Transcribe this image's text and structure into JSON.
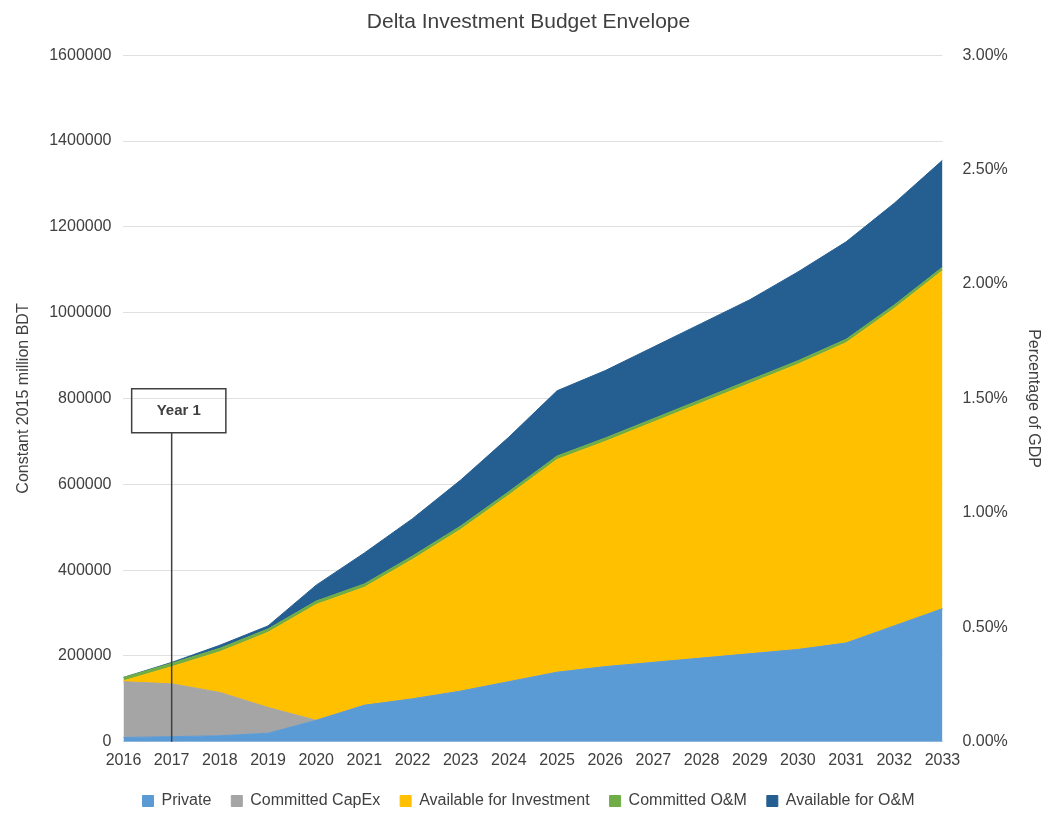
{
  "chart_data": {
    "type": "area",
    "title": "Delta Investment Budget Envelope",
    "ylabel": "Constant 2015 million BDT",
    "y2label": "Percentage of GDP",
    "categories": [
      "2016",
      "2017",
      "2018",
      "2019",
      "2020",
      "2021",
      "2022",
      "2023",
      "2024",
      "2025",
      "2026",
      "2027",
      "2028",
      "2029",
      "2030",
      "2031",
      "2032",
      "2033"
    ],
    "stacked": true,
    "series": [
      {
        "name": "Private",
        "color": "#5b9bd5",
        "values": [
          10000,
          12000,
          14000,
          20000,
          50000,
          85000,
          100000,
          118000,
          140000,
          162000,
          175000,
          185000,
          195000,
          205000,
          215000,
          230000,
          270000,
          310000
        ]
      },
      {
        "name": "Committed CapEx",
        "color": "#a5a5a5",
        "values": [
          130000,
          123000,
          101000,
          60000,
          0,
          0,
          0,
          0,
          0,
          0,
          0,
          0,
          0,
          0,
          0,
          0,
          0,
          0
        ]
      },
      {
        "name": "Available for Investment",
        "color": "#ffc000",
        "values": [
          2000,
          40000,
          95000,
          175000,
          270000,
          275000,
          325000,
          377000,
          435000,
          496000,
          525000,
          560000,
          595000,
          630000,
          665000,
          700000,
          740000,
          788000
        ]
      },
      {
        "name": "Committed O&M",
        "color": "#70ad47",
        "values": [
          8000,
          8000,
          8000,
          8000,
          8000,
          8000,
          8000,
          8000,
          8000,
          8000,
          8000,
          8000,
          8000,
          8000,
          8000,
          8000,
          8000,
          8000
        ]
      },
      {
        "name": "Available for O&M",
        "color": "#255e91",
        "values": [
          0,
          2000,
          7000,
          7000,
          37000,
          72000,
          87000,
          107000,
          127000,
          152000,
          157000,
          167000,
          177000,
          187000,
          207000,
          227000,
          237000,
          249000
        ]
      }
    ],
    "ylim": [
      0,
      1600000
    ],
    "yticks": [
      0,
      200000,
      400000,
      600000,
      800000,
      1000000,
      1200000,
      1400000,
      1600000
    ],
    "y2lim": [
      0,
      3
    ],
    "y2ticks": [
      {
        "value": 0,
        "label": "0.00%"
      },
      {
        "value": 0.5,
        "label": "0.50%"
      },
      {
        "value": 1,
        "label": "1.00%"
      },
      {
        "value": 1.5,
        "label": "1.50%"
      },
      {
        "value": 2,
        "label": "2.00%"
      },
      {
        "value": 2.5,
        "label": "2.50%"
      },
      {
        "value": 3,
        "label": "3.00%"
      }
    ],
    "ref_lines": [
      {
        "axis": "x",
        "value": "2017",
        "label": "Year 1",
        "color": "#404040"
      }
    ],
    "grid": "y",
    "legend": "bottom"
  }
}
